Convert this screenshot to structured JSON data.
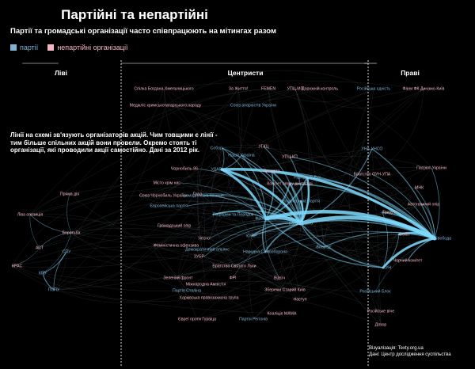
{
  "title": "Партійні та непартійні",
  "subtitle": "Партії та громадські організації часто співпрацюють на мітингах разом",
  "legend": {
    "party": {
      "label": "партії",
      "color": "#7fb3d5"
    },
    "nonparty": {
      "label": "непартійні організації",
      "color": "#f4b6c2"
    }
  },
  "sections": [
    "Ліві",
    "Центристи",
    "Праві"
  ],
  "note": "Лінії на схемі зв'язують організаторів акцій. Чим товщими є лінії - тим більше спільних акцій вони провели. Окремо стоять ті організації, які проводили акції самостійно. Дані за 2012 рік.",
  "credits": {
    "line1": "Візуалізація: Texty.org.ua",
    "line2": "Дані: Центр дослідження суспільства"
  },
  "edge_color": "#7fdcff",
  "nodes": [
    {
      "id": "sbh",
      "label": "Спілка Богдана Хмельницького",
      "type": "nonparty"
    },
    {
      "id": "zazhyttia",
      "label": "За Життя!",
      "type": "nonparty"
    },
    {
      "id": "femen",
      "label": "FEMEN",
      "type": "nonparty"
    },
    {
      "id": "ugcmp",
      "label": "УПЦ-МП",
      "type": "nonparty"
    },
    {
      "id": "dorkontrol",
      "label": "Дорожній контроль",
      "type": "nonparty"
    },
    {
      "id": "medzhlis",
      "label": "Меджліс кримськотатарського народу",
      "type": "nonparty"
    },
    {
      "id": "anarch",
      "label": "Союз анархістів України",
      "type": "party"
    },
    {
      "id": "rosyednist",
      "label": "Російська єдність",
      "type": "party"
    },
    {
      "id": "fanydk",
      "label": "Фани ФК Динамо-Київ",
      "type": "nonparty"
    },
    {
      "id": "una",
      "label": "УНА-УНСО",
      "type": "party"
    },
    {
      "id": "bratoun",
      "label": "Братство ОУН-УПА",
      "type": "nonparty"
    },
    {
      "id": "patriot",
      "label": "Патріот України",
      "type": "nonparty"
    },
    {
      "id": "mnk",
      "label": "МНК",
      "type": "nonparty"
    },
    {
      "id": "avtomaydan",
      "label": "Автономний опір",
      "type": "nonparty"
    },
    {
      "id": "trizub",
      "label": "Тризуб",
      "type": "nonparty"
    },
    {
      "id": "svoboda",
      "label": "Свобода",
      "type": "party"
    },
    {
      "id": "sokil",
      "label": "Сокіл",
      "type": "nonparty"
    },
    {
      "id": "chornkom",
      "label": "Чорний комітет",
      "type": "nonparty"
    },
    {
      "id": "kun",
      "label": "КУН",
      "type": "party"
    },
    {
      "id": "rosblok",
      "label": "Російський Блок",
      "type": "party"
    },
    {
      "id": "rosvicha",
      "label": "Російське віче",
      "type": "nonparty"
    },
    {
      "id": "dozor",
      "label": "Дозор",
      "type": "nonparty"
    },
    {
      "id": "sobor",
      "label": "Собор",
      "type": "party"
    },
    {
      "id": "ugcc",
      "label": "УГКЦ",
      "type": "nonparty"
    },
    {
      "id": "nashaukr",
      "label": "Наша Україна",
      "type": "party"
    },
    {
      "id": "ugckp",
      "label": "УПЦ-КП",
      "type": "nonparty"
    },
    {
      "id": "chornobyl86",
      "label": "Чорнобиль-86",
      "type": "nonparty"
    },
    {
      "id": "prosvita",
      "label": "Просвіта",
      "type": "nonparty"
    },
    {
      "id": "udar",
      "label": "УДАР",
      "type": "party"
    },
    {
      "id": "narrukh",
      "label": "Народний Рух",
      "type": "party"
    },
    {
      "id": "mistokrim",
      "label": "Місто крім нас",
      "type": "nonparty"
    },
    {
      "id": "komitet",
      "label": "Комітет опору диктатурі",
      "type": "nonparty"
    },
    {
      "id": "grad",
      "label": "Град",
      "type": "nonparty"
    },
    {
      "id": "soyuzch",
      "label": "Союз Чорнобиль України",
      "type": "nonparty"
    },
    {
      "id": "hrompoz",
      "label": "Громадянська позиція",
      "type": "party"
    },
    {
      "id": "nacpartiia",
      "label": "Національна Партія",
      "type": "party"
    },
    {
      "id": "vp",
      "label": "Європейська партія",
      "type": "party"
    },
    {
      "id": "reformy",
      "label": "Реформи та Порядок",
      "type": "party"
    },
    {
      "id": "batkivsh",
      "label": "Батьківщина",
      "type": "party"
    },
    {
      "id": "front",
      "label": "Фронт Змін",
      "type": "party"
    },
    {
      "id": "gromopir",
      "label": "Громадський опір",
      "type": "nonparty"
    },
    {
      "id": "kupr",
      "label": "КУПР",
      "type": "party"
    },
    {
      "id": "chesno",
      "label": "Чесно",
      "type": "nonparty"
    },
    {
      "id": "feminist",
      "label": "Феміністична офензива",
      "type": "nonparty"
    },
    {
      "id": "demalyans",
      "label": "Демократичний альянс",
      "type": "party"
    },
    {
      "id": "nsamo",
      "label": "Народна Самооборона",
      "type": "party"
    },
    {
      "id": "vpered",
      "label": "Вперед!",
      "type": "party"
    },
    {
      "id": "zubr",
      "label": "ЗУБР",
      "type": "nonparty"
    },
    {
      "id": "bratsvlu",
      "label": "Братство Святого Луки",
      "type": "nonparty"
    },
    {
      "id": "zelfront",
      "label": "Зелений фронт",
      "type": "nonparty"
    },
    {
      "id": "fpu",
      "label": "ФРІ",
      "type": "nonparty"
    },
    {
      "id": "vidsich",
      "label": "Відсіч",
      "type": "nonparty"
    },
    {
      "id": "mizhrada",
      "label": "Міжнародна Амністія",
      "type": "nonparty"
    },
    {
      "id": "zberkyiv",
      "label": "Збережи Старий Київ",
      "type": "nonparty"
    },
    {
      "id": "pstalina",
      "label": "Партія Сталіна",
      "type": "party"
    },
    {
      "id": "nastup",
      "label": "Наступ",
      "type": "nonparty"
    },
    {
      "id": "harkpravo",
      "label": "Харківська правозахисна група",
      "type": "nonparty"
    },
    {
      "id": "koalmama",
      "label": "Коаліція МАМА",
      "type": "nonparty"
    },
    {
      "id": "gurvits",
      "label": "Євреї проти Гурвіца",
      "type": "nonparty"
    },
    {
      "id": "pregionov",
      "label": "Партія Регіонів",
      "type": "party"
    },
    {
      "id": "pryamadiia",
      "label": "Пряма дія",
      "type": "nonparty"
    },
    {
      "id": "livaop",
      "label": "Ліва опозиція",
      "type": "nonparty"
    },
    {
      "id": "borotba",
      "label": "Боротьба",
      "type": "nonparty"
    },
    {
      "id": "act",
      "label": "АСТ",
      "type": "nonparty"
    },
    {
      "id": "spu",
      "label": "СПУ",
      "type": "party"
    },
    {
      "id": "kpras",
      "label": "КРАС",
      "type": "nonparty"
    },
    {
      "id": "kpu",
      "label": "КПУ",
      "type": "party"
    },
    {
      "id": "pspu",
      "label": "ПСПУ",
      "type": "party"
    }
  ]
}
